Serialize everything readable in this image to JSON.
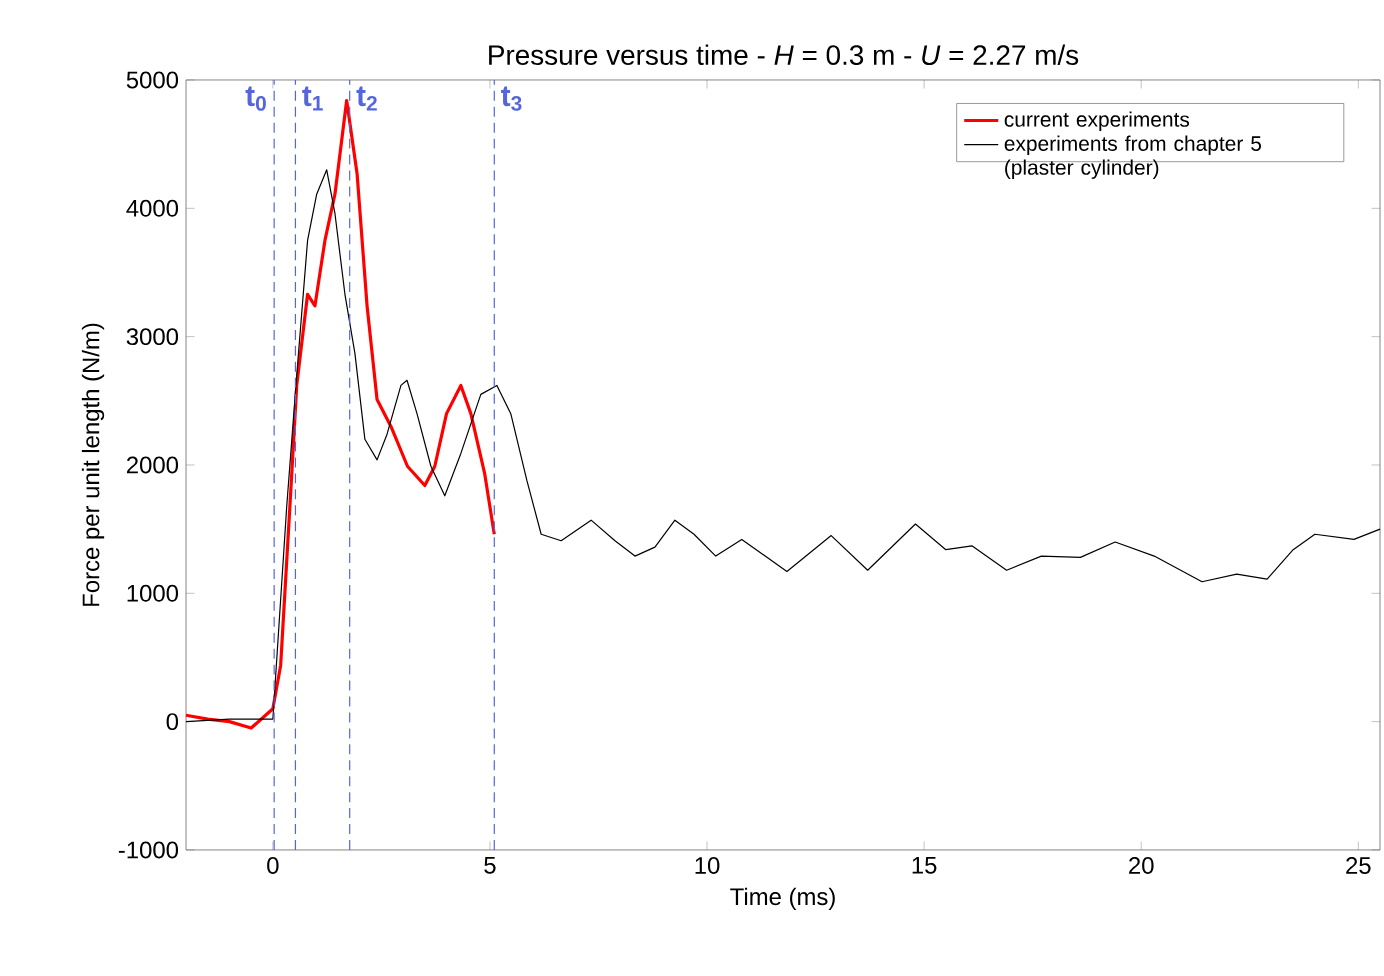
{
  "chart_data": {
    "type": "line",
    "title": "Pressure versus time  -  *H* = 0.3 m  -  *U* = 2.27 m/s",
    "xlabel": "Time (ms)",
    "ylabel": "Force per unit length (N/m)",
    "xlim": [
      -2,
      25.5
    ],
    "ylim": [
      -1000,
      5000
    ],
    "xticks": [
      0,
      5,
      10,
      15,
      20,
      25
    ],
    "yticks": [
      -1000,
      0,
      1000,
      2000,
      3000,
      4000,
      5000
    ],
    "grid": false,
    "legend": "top right",
    "marker": "none",
    "series": [
      {
        "name": "current experiments",
        "color": "#ff0000",
        "line_style": "solid",
        "x": [
          -2,
          -1.5,
          -1,
          -0.5,
          0,
          0.18,
          0.41,
          0.55,
          0.8,
          0.97,
          1.2,
          1.43,
          1.7,
          1.94,
          2.17,
          2.4,
          2.72,
          3.1,
          3.5,
          3.73,
          4.0,
          4.33,
          4.56,
          4.88,
          5.1
        ],
        "values": [
          50,
          20,
          0,
          -50,
          100,
          440,
          1780,
          2620,
          3330,
          3240,
          3750,
          4110,
          4840,
          4270,
          3240,
          2510,
          2300,
          1990,
          1840,
          1990,
          2400,
          2620,
          2400,
          1930,
          1460
        ]
      },
      {
        "name": "experiments from chapter 5 (plaster cylinder)",
        "color": "#000000",
        "line_style": "solid",
        "x": [
          -2,
          -1,
          0,
          0.32,
          0.55,
          0.8,
          1.01,
          1.24,
          1.43,
          1.66,
          1.89,
          2.12,
          2.4,
          2.63,
          2.95,
          3.09,
          3.32,
          3.64,
          3.96,
          4.33,
          4.79,
          5.16,
          5.48,
          5.85,
          6.18,
          6.64,
          7.33,
          7.88,
          8.34,
          8.8,
          9.26,
          9.7,
          10.2,
          10.8,
          11.84,
          12.86,
          13.7,
          14.8,
          15.5,
          16.1,
          16.9,
          17.7,
          18.6,
          19.4,
          20.3,
          21.4,
          22.2,
          22.9,
          23.5,
          24,
          24.9,
          25.5
        ],
        "values": [
          0,
          20,
          20,
          1680,
          2700,
          3750,
          4110,
          4300,
          3960,
          3330,
          2870,
          2200,
          2040,
          2240,
          2620,
          2660,
          2400,
          1990,
          1760,
          2090,
          2550,
          2620,
          2400,
          1880,
          1460,
          1410,
          1570,
          1410,
          1290,
          1360,
          1570,
          1460,
          1290,
          1420,
          1170,
          1450,
          1180,
          1540,
          1340,
          1370,
          1180,
          1290,
          1280,
          1400,
          1290,
          1090,
          1150,
          1110,
          1340,
          1460,
          1420,
          1500
        ]
      }
    ],
    "ref_lines": [
      {
        "axis": "x",
        "value": 0.03,
        "label": "t$_{0}$",
        "color": "#5566dd",
        "line_style": "dashed"
      },
      {
        "axis": "x",
        "value": 0.52,
        "label": "t$_{1}$",
        "color": "#5566dd",
        "line_style": "dashed"
      },
      {
        "axis": "x",
        "value": 1.77,
        "label": "t$_{2}$",
        "color": "#5566dd",
        "line_style": "dashed"
      },
      {
        "axis": "x",
        "value": 5.1,
        "label": "t$_{3}$",
        "color": "#5566dd",
        "line_style": "dashed"
      }
    ]
  }
}
